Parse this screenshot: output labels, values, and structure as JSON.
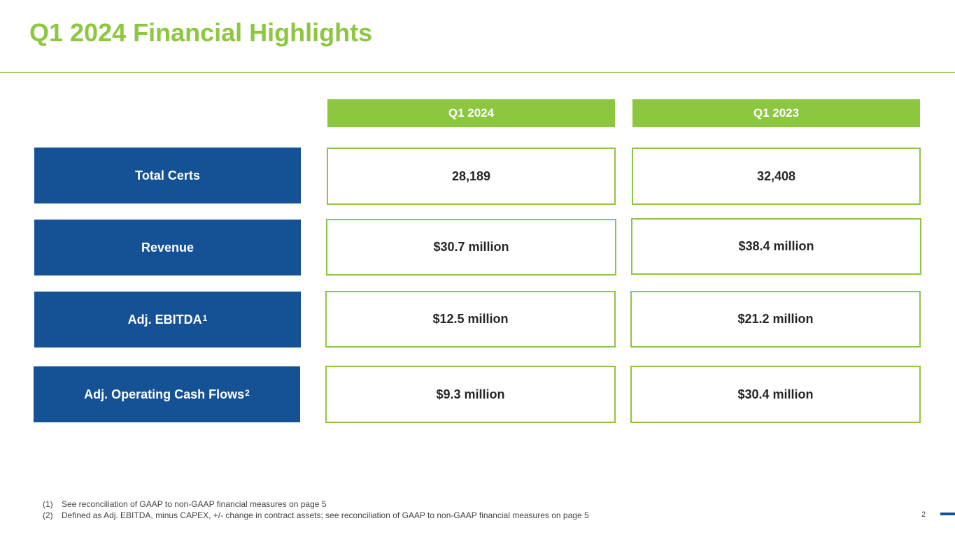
{
  "title": "Q1 2024 Financial Highlights",
  "columns": [
    "Q1 2024",
    "Q1 2023"
  ],
  "rows": [
    {
      "label": "Total Certs",
      "sup": "",
      "q1_2024": "28,189",
      "q1_2023": "32,408"
    },
    {
      "label": "Revenue",
      "sup": "",
      "q1_2024": "$30.7 million",
      "q1_2023": "$38.4 million"
    },
    {
      "label": "Adj. EBITDA",
      "sup": "1",
      "q1_2024": "$12.5 million",
      "q1_2023": "$21.2 million"
    },
    {
      "label": "Adj. Operating Cash Flows",
      "sup": "2",
      "q1_2024": "$9.3 million",
      "q1_2023": "$30.4 million"
    }
  ],
  "footnotes": [
    {
      "num": "(1)",
      "text": "See reconciliation of GAAP to non-GAAP financial measures on page 5"
    },
    {
      "num": "(2)",
      "text": "Defined as Adj. EBITDA, minus CAPEX, +/- change in contract assets; see reconciliation of GAAP to non-GAAP financial measures on page 5"
    }
  ],
  "page_number": "2",
  "colors": {
    "accent_green": "#8dc63f",
    "label_blue": "#155195",
    "value_text": "#262626"
  }
}
